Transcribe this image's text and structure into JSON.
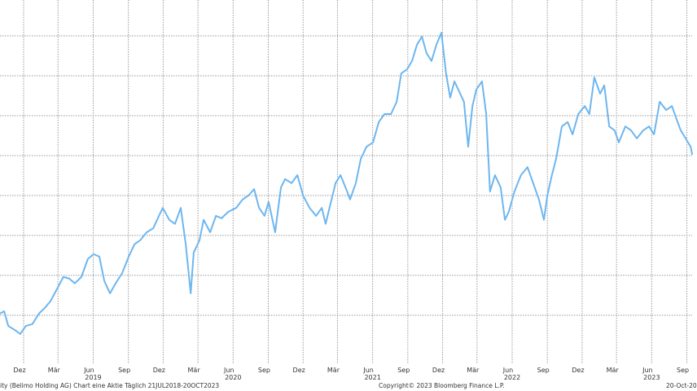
{
  "chart_data": {
    "type": "line",
    "title": "",
    "xlabel": "",
    "ylabel": "",
    "grid": true,
    "line_color": "#6db6ef",
    "x_range": [
      "2018-09-30",
      "2023-10-20"
    ],
    "y_gridlines": [
      1,
      2,
      3,
      4,
      5,
      6,
      7,
      8
    ],
    "ylim": [
      0,
      8.2
    ],
    "x_ticks": [
      {
        "date": "2018-12-01",
        "label": "Dez"
      },
      {
        "date": "2019-03-01",
        "label": "Mär"
      },
      {
        "date": "2019-06-01",
        "label": "Jun",
        "year": "2019"
      },
      {
        "date": "2019-09-01",
        "label": "Sep"
      },
      {
        "date": "2019-12-01",
        "label": "Dez"
      },
      {
        "date": "2020-03-01",
        "label": "Mär"
      },
      {
        "date": "2020-06-01",
        "label": "Jun",
        "year": "2020"
      },
      {
        "date": "2020-09-01",
        "label": "Sep"
      },
      {
        "date": "2020-12-01",
        "label": "Dez"
      },
      {
        "date": "2021-03-01",
        "label": "Mär"
      },
      {
        "date": "2021-06-01",
        "label": "Jun",
        "year": "2021"
      },
      {
        "date": "2021-09-01",
        "label": "Sep"
      },
      {
        "date": "2021-12-01",
        "label": "Dez"
      },
      {
        "date": "2022-03-01",
        "label": "Mär"
      },
      {
        "date": "2022-06-01",
        "label": "Jun",
        "year": "2022"
      },
      {
        "date": "2022-09-01",
        "label": "Sep"
      },
      {
        "date": "2022-12-01",
        "label": "Dez"
      },
      {
        "date": "2023-03-01",
        "label": "Mär"
      },
      {
        "date": "2023-06-01",
        "label": "Jun",
        "year": "2023"
      },
      {
        "date": "2023-09-01",
        "label": "Sep"
      }
    ],
    "x": [
      "2018-09-30",
      "2018-10-11",
      "2018-10-22",
      "2018-11-08",
      "2018-11-22",
      "2018-12-07",
      "2018-12-24",
      "2019-01-10",
      "2019-01-25",
      "2019-02-09",
      "2019-02-26",
      "2019-03-15",
      "2019-03-30",
      "2019-04-14",
      "2019-05-01",
      "2019-05-18",
      "2019-06-02",
      "2019-06-17",
      "2019-06-30",
      "2019-07-15",
      "2019-07-30",
      "2019-08-16",
      "2019-09-02",
      "2019-09-17",
      "2019-10-02",
      "2019-10-19",
      "2019-11-05",
      "2019-11-20",
      "2019-11-30",
      "2019-12-17",
      "2020-01-01",
      "2020-01-16",
      "2020-01-29",
      "2020-02-11",
      "2020-02-19",
      "2020-03-05",
      "2020-03-16",
      "2020-04-02",
      "2020-04-17",
      "2020-05-02",
      "2020-05-19",
      "2020-06-09",
      "2020-06-26",
      "2020-07-11",
      "2020-07-26",
      "2020-08-08",
      "2020-08-22",
      "2020-09-02",
      "2020-09-19",
      "2020-10-04",
      "2020-10-15",
      "2020-11-01",
      "2020-11-16",
      "2020-12-01",
      "2020-12-18",
      "2021-01-04",
      "2021-01-19",
      "2021-01-29",
      "2021-02-11",
      "2021-02-24",
      "2021-03-09",
      "2021-03-24",
      "2021-04-03",
      "2021-04-18",
      "2021-05-01",
      "2021-05-16",
      "2021-06-02",
      "2021-06-17",
      "2021-07-02",
      "2021-07-19",
      "2021-08-03",
      "2021-08-15",
      "2021-08-30",
      "2021-09-12",
      "2021-09-25",
      "2021-10-08",
      "2021-10-20",
      "2021-11-02",
      "2021-11-15",
      "2021-11-28",
      "2021-12-10",
      "2021-12-21",
      "2022-01-01",
      "2022-01-16",
      "2022-01-26",
      "2022-02-06",
      "2022-02-17",
      "2022-02-27",
      "2022-03-14",
      "2022-03-25",
      "2022-04-04",
      "2022-04-17",
      "2022-05-02",
      "2022-05-13",
      "2022-05-23",
      "2022-06-07",
      "2022-06-24",
      "2022-07-11",
      "2022-07-26",
      "2022-08-10",
      "2022-08-23",
      "2022-09-01",
      "2022-09-13",
      "2022-09-24",
      "2022-10-09",
      "2022-10-24",
      "2022-11-06",
      "2022-11-21",
      "2022-12-08",
      "2022-12-20",
      "2023-01-02",
      "2023-01-17",
      "2023-01-28",
      "2023-02-10",
      "2023-02-24",
      "2023-03-07",
      "2023-03-24",
      "2023-04-08",
      "2023-04-23",
      "2023-05-10",
      "2023-05-25",
      "2023-06-07",
      "2023-06-22",
      "2023-07-09",
      "2023-07-24",
      "2023-08-04",
      "2023-08-16",
      "2023-08-29",
      "2023-09-11",
      "2023-09-15"
    ],
    "values": [
      1.04,
      1.1,
      0.73,
      0.63,
      0.53,
      0.73,
      0.78,
      1.04,
      1.18,
      1.35,
      1.65,
      1.96,
      1.92,
      1.8,
      1.96,
      2.41,
      2.53,
      2.47,
      1.86,
      1.55,
      1.8,
      2.06,
      2.47,
      2.78,
      2.88,
      3.08,
      3.18,
      3.49,
      3.69,
      3.39,
      3.29,
      3.69,
      2.78,
      1.55,
      2.57,
      2.88,
      3.39,
      3.08,
      3.49,
      3.43,
      3.59,
      3.69,
      3.9,
      4.0,
      4.16,
      3.69,
      3.49,
      3.84,
      3.08,
      4.2,
      4.41,
      4.31,
      4.51,
      4.0,
      3.69,
      3.49,
      3.69,
      3.29,
      3.8,
      4.31,
      4.51,
      4.16,
      3.9,
      4.31,
      4.92,
      5.22,
      5.33,
      5.84,
      6.04,
      6.04,
      6.35,
      7.06,
      7.16,
      7.37,
      7.78,
      7.98,
      7.57,
      7.37,
      7.78,
      8.08,
      7.06,
      6.45,
      6.86,
      6.55,
      6.35,
      5.22,
      6.24,
      6.65,
      6.86,
      6.04,
      4.1,
      4.51,
      4.2,
      3.39,
      3.59,
      4.1,
      4.51,
      4.71,
      4.31,
      3.9,
      3.39,
      4.0,
      4.51,
      4.92,
      5.73,
      5.84,
      5.53,
      6.04,
      6.24,
      6.04,
      6.96,
      6.55,
      6.76,
      5.73,
      5.63,
      5.33,
      5.73,
      5.63,
      5.43,
      5.63,
      5.73,
      5.53,
      6.35,
      6.14,
      6.24,
      5.94,
      5.63,
      5.43,
      5.22,
      5.02
    ]
  },
  "footer": {
    "description": "ity (Belimo Holding AG) Chart eine Aktie  Täglich 21JUL2018-20OCT2023",
    "copyright": "Copyright© 2023 Bloomberg Finance L.P.",
    "date": "20-Oct-20"
  }
}
